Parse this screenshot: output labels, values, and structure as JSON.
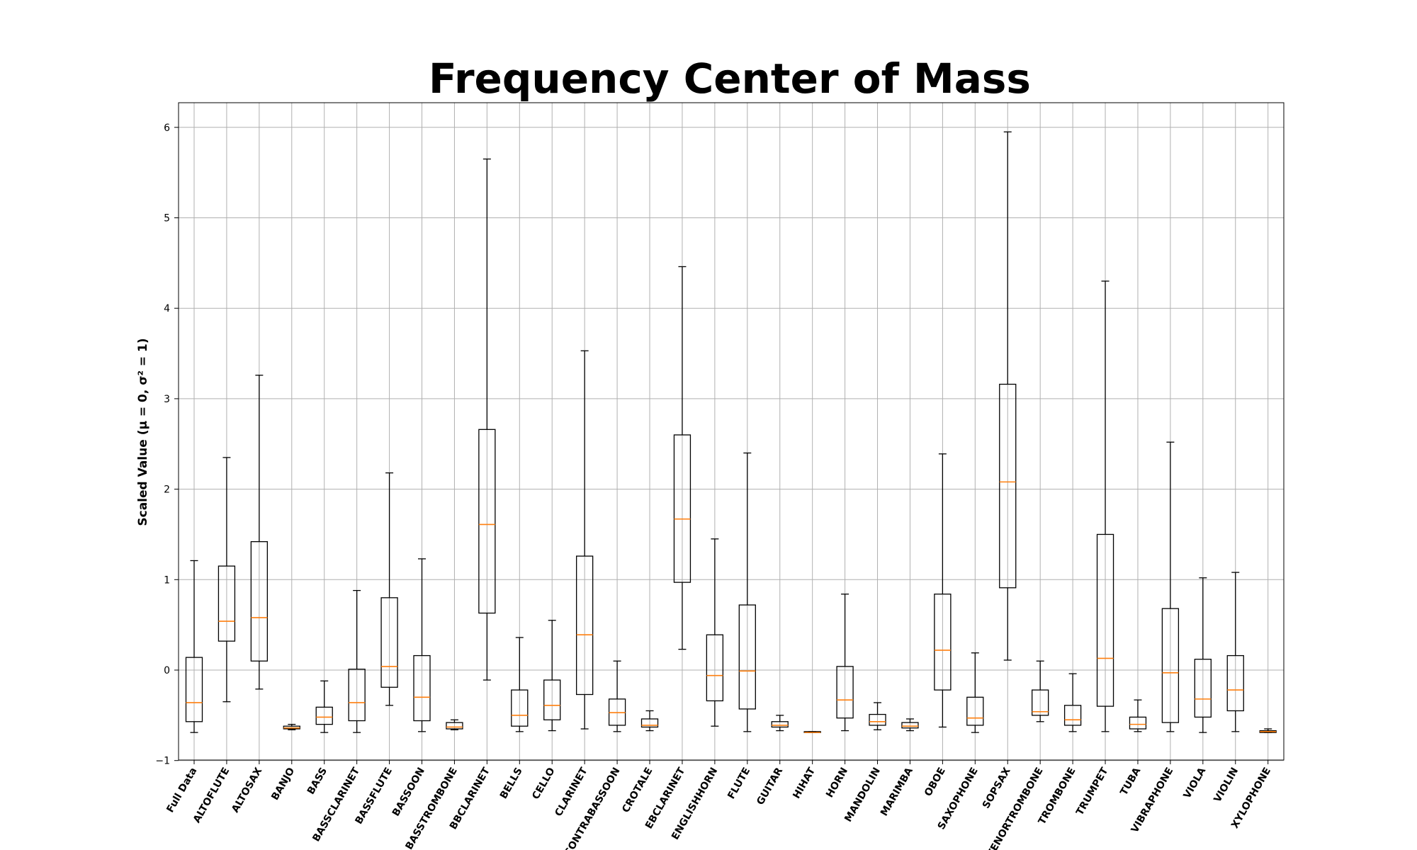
{
  "chart_data": {
    "type": "box",
    "title": "Frequency Center of Mass",
    "xlabel": "",
    "ylabel": "Scaled Value (μ = 0, σ² = 1)",
    "ylim": [
      -1,
      6.3
    ],
    "yticks": [
      -1,
      0,
      1,
      2,
      3,
      4,
      5,
      6
    ],
    "grid": true,
    "categories": [
      "Full Data",
      "ALTOFLUTE",
      "ALTOSAX",
      "BANJO",
      "BASS",
      "BASSCLARINET",
      "BASSFLUTE",
      "BASSOON",
      "BASSTROMBONE",
      "BBCLARINET",
      "BELLS",
      "CELLO",
      "CLARINET",
      "CONTRABASSOON",
      "CROTALE",
      "EBCLARINET",
      "ENGLISHHORN",
      "FLUTE",
      "GUITAR",
      "HIHAT",
      "HORN",
      "MANDOLIN",
      "MARIMBA",
      "OBOE",
      "SAXOPHONE",
      "SOPSAX",
      "TENORTROMBONE",
      "TROMBONE",
      "TRUMPET",
      "TUBA",
      "VIBRAPHONE",
      "VIOLA",
      "VIOLIN",
      "XYLOPHONE"
    ],
    "boxes": [
      {
        "whislo": -0.69,
        "q1": -0.57,
        "med": -0.36,
        "q3": 0.14,
        "whishi": 1.21
      },
      {
        "whislo": -0.35,
        "q1": 0.32,
        "med": 0.54,
        "q3": 1.15,
        "whishi": 2.35
      },
      {
        "whislo": -0.21,
        "q1": 0.1,
        "med": 0.58,
        "q3": 1.42,
        "whishi": 3.26
      },
      {
        "whislo": -0.66,
        "q1": -0.65,
        "med": -0.64,
        "q3": -0.62,
        "whishi": -0.6
      },
      {
        "whislo": -0.69,
        "q1": -0.6,
        "med": -0.52,
        "q3": -0.41,
        "whishi": -0.12
      },
      {
        "whislo": -0.69,
        "q1": -0.56,
        "med": -0.36,
        "q3": 0.01,
        "whishi": 0.88
      },
      {
        "whislo": -0.39,
        "q1": -0.19,
        "med": 0.04,
        "q3": 0.8,
        "whishi": 2.18
      },
      {
        "whislo": -0.68,
        "q1": -0.56,
        "med": -0.3,
        "q3": 0.16,
        "whishi": 1.23
      },
      {
        "whislo": -0.66,
        "q1": -0.65,
        "med": -0.63,
        "q3": -0.58,
        "whishi": -0.55
      },
      {
        "whislo": -0.11,
        "q1": 0.63,
        "med": 1.61,
        "q3": 2.66,
        "whishi": 5.65
      },
      {
        "whislo": -0.68,
        "q1": -0.62,
        "med": -0.5,
        "q3": -0.22,
        "whishi": 0.36
      },
      {
        "whislo": -0.67,
        "q1": -0.55,
        "med": -0.39,
        "q3": -0.11,
        "whishi": 0.55
      },
      {
        "whislo": -0.65,
        "q1": -0.27,
        "med": 0.39,
        "q3": 1.26,
        "whishi": 3.53
      },
      {
        "whislo": -0.68,
        "q1": -0.61,
        "med": -0.47,
        "q3": -0.32,
        "whishi": 0.1
      },
      {
        "whislo": -0.67,
        "q1": -0.63,
        "med": -0.61,
        "q3": -0.54,
        "whishi": -0.45
      },
      {
        "whislo": 0.23,
        "q1": 0.97,
        "med": 1.67,
        "q3": 2.6,
        "whishi": 4.46
      },
      {
        "whislo": -0.62,
        "q1": -0.34,
        "med": -0.06,
        "q3": 0.39,
        "whishi": 1.45
      },
      {
        "whislo": -0.68,
        "q1": -0.43,
        "med": -0.01,
        "q3": 0.72,
        "whishi": 2.4
      },
      {
        "whislo": -0.67,
        "q1": -0.63,
        "med": -0.61,
        "q3": -0.57,
        "whishi": -0.5
      },
      {
        "whislo": -0.69,
        "q1": -0.69,
        "med": -0.69,
        "q3": -0.68,
        "whishi": -0.68
      },
      {
        "whislo": -0.67,
        "q1": -0.53,
        "med": -0.33,
        "q3": 0.04,
        "whishi": 0.84
      },
      {
        "whislo": -0.66,
        "q1": -0.61,
        "med": -0.57,
        "q3": -0.49,
        "whishi": -0.36
      },
      {
        "whislo": -0.67,
        "q1": -0.64,
        "med": -0.62,
        "q3": -0.58,
        "whishi": -0.54
      },
      {
        "whislo": -0.63,
        "q1": -0.22,
        "med": 0.22,
        "q3": 0.84,
        "whishi": 2.39
      },
      {
        "whislo": -0.69,
        "q1": -0.61,
        "med": -0.53,
        "q3": -0.3,
        "whishi": 0.19
      },
      {
        "whislo": 0.11,
        "q1": 0.91,
        "med": 2.08,
        "q3": 3.16,
        "whishi": 5.95
      },
      {
        "whislo": -0.57,
        "q1": -0.5,
        "med": -0.46,
        "q3": -0.22,
        "whishi": 0.1
      },
      {
        "whislo": -0.68,
        "q1": -0.61,
        "med": -0.55,
        "q3": -0.39,
        "whishi": -0.04
      },
      {
        "whislo": -0.68,
        "q1": -0.4,
        "med": 0.13,
        "q3": 1.5,
        "whishi": 4.3
      },
      {
        "whislo": -0.68,
        "q1": -0.65,
        "med": -0.6,
        "q3": -0.52,
        "whishi": -0.33
      },
      {
        "whislo": -0.68,
        "q1": -0.58,
        "med": -0.03,
        "q3": 0.68,
        "whishi": 2.52
      },
      {
        "whislo": -0.69,
        "q1": -0.52,
        "med": -0.32,
        "q3": 0.12,
        "whishi": 1.02
      },
      {
        "whislo": -0.68,
        "q1": -0.45,
        "med": -0.22,
        "q3": 0.16,
        "whishi": 1.08
      },
      {
        "whislo": -0.69,
        "q1": -0.69,
        "med": -0.68,
        "q3": -0.67,
        "whishi": -0.65
      }
    ],
    "colors": {
      "box": "#000000",
      "median": "#ff7f0e",
      "grid": "#b0b0b0"
    }
  }
}
